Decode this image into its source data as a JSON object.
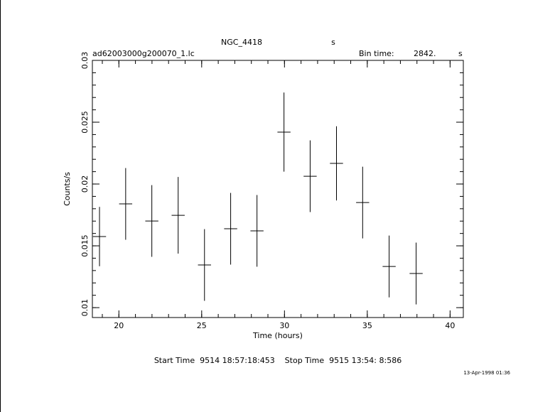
{
  "chart_data": {
    "type": "errorbar",
    "title": "NGC_4418",
    "title_unit": "s",
    "subtitle": "ad62003000g200070_1.lc",
    "bin_label": "Bin time:",
    "bin_value": "2842.",
    "bin_unit": "s",
    "xlabel": "Time (hours)",
    "ylabel": "Counts/s",
    "footer": "Start Time  9514 18:57:18:453    Stop Time  9515 13:54: 8:586",
    "timestamp": "13-Apr-1998 01:36",
    "x": [
      18.83,
      20.41,
      21.99,
      23.58,
      25.17,
      26.75,
      28.34,
      29.97,
      31.55,
      33.14,
      34.72,
      36.32,
      37.95
    ],
    "values": [
      0.01575,
      0.01839,
      0.01701,
      0.01747,
      0.01345,
      0.01638,
      0.01621,
      0.0242,
      0.02063,
      0.02167,
      0.0185,
      0.01333,
      0.01276
    ],
    "yerr": [
      0.0024,
      0.0029,
      0.0029,
      0.0031,
      0.0029,
      0.0029,
      0.0029,
      0.0032,
      0.0029,
      0.003,
      0.0029,
      0.0025,
      0.0025
    ],
    "xerr": 0.395,
    "color": "#000000",
    "xlim": [
      18.4,
      40.8
    ],
    "xticks": [
      20,
      25,
      30,
      35,
      40
    ],
    "xminor": 1,
    "ylim": [
      0.0092,
      0.03
    ],
    "yticks": [
      0.01,
      0.015,
      0.02,
      0.025,
      0.03
    ],
    "yminor": 0.001
  }
}
